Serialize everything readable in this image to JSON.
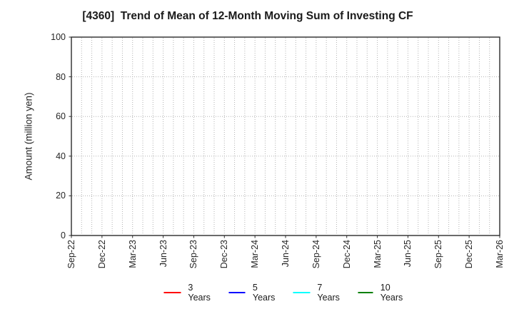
{
  "chart_data": {
    "type": "line",
    "title": "[4360]  Trend of Mean of 12-Month Moving Sum of Investing CF",
    "xlabel": "",
    "ylabel": "Amount (million yen)",
    "ylim": [
      0,
      100
    ],
    "yticks": [
      0,
      20,
      40,
      60,
      80,
      100
    ],
    "x_tick_labels": [
      "Sep-22",
      "Dec-22",
      "Mar-23",
      "Jun-23",
      "Sep-23",
      "Dec-23",
      "Mar-24",
      "Jun-24",
      "Sep-24",
      "Dec-24",
      "Mar-25",
      "Jun-25",
      "Sep-25",
      "Dec-25",
      "Mar-26"
    ],
    "x_total_months": 42,
    "grid": "dotted",
    "grid_color": "#b3b3b3",
    "frame_color": "#2b2b2b",
    "legend_position": "bottom-center",
    "series": [
      {
        "name": "3 Years",
        "color": "#ff0000",
        "values": []
      },
      {
        "name": "5 Years",
        "color": "#0000ff",
        "values": []
      },
      {
        "name": "7 Years",
        "color": "#00ffff",
        "values": []
      },
      {
        "name": "10 Years",
        "color": "#008000",
        "values": []
      }
    ]
  }
}
